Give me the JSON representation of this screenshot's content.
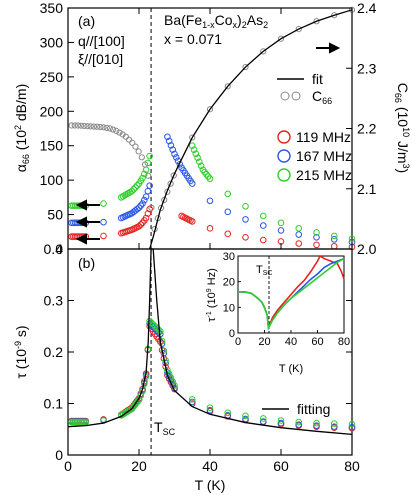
{
  "chart_data": [
    {
      "type": "scatter",
      "panel_label": "(a)",
      "compound": "Ba(Fe",
      "compound_sub1": "1-x",
      "compound_mid": "Co",
      "compound_sub2": "x",
      "compound_end": ")",
      "compound_sub3": "2",
      "compound_tail": "As",
      "compound_sub4": "2",
      "doping": "x = 0.071",
      "q_label": "q//[100]",
      "xi_label": "ξ//[010]",
      "ylabel_left": "α",
      "ylabel_left_sub": "66",
      "ylabel_left_unit": " (10",
      "ylabel_left_exp": "2",
      "ylabel_left_unit2": " dB/m)",
      "ylabel_right": "C",
      "ylabel_right_sub": "66",
      "ylabel_right_unit": " (10",
      "ylabel_right_exp": "10",
      "ylabel_right_unit2": " J/m",
      "ylabel_right_exp2": "3",
      "ylabel_right_close": ")",
      "xlim": [
        0,
        80
      ],
      "ylim_left": [
        0,
        350
      ],
      "ylim_right": [
        2.0,
        2.4
      ],
      "yticks_left": [
        "0",
        "50",
        "100",
        "150",
        "200",
        "250",
        "300",
        "350"
      ],
      "yticks_right": [
        "2.0",
        "2.1",
        "2.2",
        "2.3",
        "2.4"
      ],
      "legend": {
        "fit": "fit",
        "c66": "C",
        "c66_sub": "66",
        "items": [
          "119 MHz",
          "167 MHz",
          "215 MHz"
        ]
      },
      "colors": {
        "119 MHz": "#e8231f",
        "167 MHz": "#2858e6",
        "215 MHz": "#2fcf2a",
        "C66": "#888888",
        "fit": "#000000"
      },
      "series": [
        {
          "name": "119 MHz",
          "axis": "left",
          "x": [
            1,
            5,
            10,
            15,
            18,
            20,
            21,
            22,
            23,
            23.4,
            32,
            35,
            40,
            45,
            50,
            55,
            60,
            65,
            70,
            75,
            80
          ],
          "y": [
            18,
            18,
            19,
            23,
            28,
            33,
            38,
            45,
            58,
            80,
            48,
            40,
            30,
            22,
            17,
            13,
            11,
            8,
            6,
            4,
            3
          ]
        },
        {
          "name": "167 MHz",
          "axis": "left",
          "x": [
            1,
            5,
            10,
            15,
            18,
            20,
            21,
            22,
            23,
            23.4,
            28,
            30,
            32,
            35,
            40,
            45,
            50,
            55,
            60,
            65,
            70,
            75,
            80
          ],
          "y": [
            38,
            38,
            39,
            45,
            52,
            60,
            66,
            76,
            92,
            125,
            163,
            138,
            118,
            95,
            70,
            54,
            43,
            34,
            27,
            21,
            17,
            14,
            10
          ]
        },
        {
          "name": "215 MHz",
          "axis": "left",
          "x": [
            1,
            5,
            10,
            15,
            18,
            20,
            21,
            22,
            23,
            23.4,
            35,
            38,
            40,
            45,
            50,
            55,
            60,
            65,
            70,
            75,
            80
          ],
          "y": [
            63,
            63,
            66,
            75,
            84,
            95,
            103,
            115,
            135,
            190,
            150,
            115,
            102,
            80,
            62,
            48,
            38,
            30,
            24,
            19,
            15
          ]
        },
        {
          "name": "C66",
          "axis": "right",
          "x": [
            1,
            3,
            5,
            8,
            10,
            12,
            14,
            16,
            18,
            19,
            20,
            21,
            22,
            23,
            24,
            26,
            30,
            35,
            40,
            45,
            50,
            55,
            60,
            65,
            70,
            75,
            80
          ],
          "y": [
            2.205,
            2.205,
            2.204,
            2.203,
            2.202,
            2.2,
            2.195,
            2.188,
            2.177,
            2.17,
            2.161,
            2.15,
            2.136,
            2.112,
            2.025,
            2.065,
            2.125,
            2.185,
            2.232,
            2.27,
            2.302,
            2.328,
            2.349,
            2.365,
            2.378,
            2.388,
            2.397
          ]
        }
      ],
      "fit": {
        "axis": "right",
        "x": [
          23,
          24,
          26,
          28,
          30,
          35,
          40,
          45,
          50,
          55,
          60,
          65,
          70,
          75,
          80
        ],
        "y": [
          2.0,
          2.02,
          2.065,
          2.097,
          2.125,
          2.185,
          2.232,
          2.27,
          2.302,
          2.328,
          2.349,
          2.365,
          2.378,
          2.388,
          2.397
        ]
      }
    },
    {
      "type": "scatter",
      "panel_label": "(b)",
      "xlabel": "T (K)",
      "ylabel": "τ (10",
      "ylabel_exp": "-9",
      "ylabel_close": " s)",
      "xlim": [
        0,
        80
      ],
      "ylim": [
        0,
        0.4
      ],
      "xticks": [
        "0",
        "20",
        "40",
        "60",
        "80"
      ],
      "yticks": [
        "0",
        "0.1",
        "0.2",
        "0.3",
        "0.4"
      ],
      "tsc_label": "T",
      "tsc_sub": "SC",
      "fitting_label": "fitting",
      "series": [
        {
          "name": "119 MHz",
          "x": [
            1,
            5,
            10,
            15,
            18,
            20,
            21,
            22,
            23,
            26,
            28,
            30,
            35,
            40,
            45,
            50,
            55,
            60,
            65,
            70,
            75,
            80
          ],
          "y": [
            0.066,
            0.066,
            0.069,
            0.078,
            0.092,
            0.11,
            0.128,
            0.158,
            0.25,
            0.22,
            0.155,
            0.128,
            0.1,
            0.085,
            0.075,
            0.068,
            0.064,
            0.06,
            0.057,
            0.055,
            0.053,
            0.052
          ]
        },
        {
          "name": "167 MHz",
          "x": [
            1,
            5,
            10,
            15,
            18,
            20,
            21,
            22,
            23,
            26,
            28,
            30,
            35,
            40,
            45,
            50,
            55,
            60,
            65,
            70,
            75,
            80
          ],
          "y": [
            0.065,
            0.065,
            0.068,
            0.077,
            0.09,
            0.108,
            0.125,
            0.155,
            0.255,
            0.235,
            0.16,
            0.13,
            0.103,
            0.087,
            0.077,
            0.07,
            0.065,
            0.062,
            0.059,
            0.057,
            0.055,
            0.054
          ]
        },
        {
          "name": "215 MHz",
          "x": [
            1,
            5,
            10,
            15,
            18,
            20,
            21,
            22,
            23,
            26,
            28,
            30,
            35,
            40,
            45,
            50,
            55,
            60,
            65,
            70,
            75,
            80
          ],
          "y": [
            0.064,
            0.064,
            0.067,
            0.077,
            0.09,
            0.107,
            0.124,
            0.152,
            0.26,
            0.24,
            0.165,
            0.135,
            0.108,
            0.092,
            0.082,
            0.076,
            0.071,
            0.067,
            0.064,
            0.062,
            0.061,
            0.06
          ]
        }
      ],
      "fit": {
        "x": [
          0,
          5,
          10,
          15,
          18,
          20,
          21,
          22,
          22.6,
          23,
          23.4,
          24,
          25,
          26,
          28,
          30,
          35,
          40,
          50,
          60,
          70,
          80
        ],
        "y": [
          0.055,
          0.057,
          0.062,
          0.075,
          0.09,
          0.11,
          0.128,
          0.16,
          0.22,
          0.3,
          0.4,
          0.4,
          0.3,
          0.22,
          0.155,
          0.125,
          0.094,
          0.079,
          0.063,
          0.053,
          0.046,
          0.04
        ]
      },
      "inset": {
        "title": "T",
        "title_sub": "SC",
        "xlabel": "T (K)",
        "ylabel": "τ",
        "ylabel_exp": "-1",
        "ylabel_unit": " (10",
        "ylabel_exp2": "9",
        "ylabel_unit2": " Hz)",
        "xlim": [
          0,
          80
        ],
        "ylim": [
          0,
          30
        ],
        "xticks": [
          "0",
          "20",
          "40",
          "60",
          "80"
        ],
        "yticks": [
          "0",
          "10",
          "20",
          "30"
        ],
        "series": [
          {
            "name": "119 MHz",
            "x": [
              0,
              5,
              10,
              15,
              18,
              20,
              22,
              23,
              26,
              30,
              35,
              40,
              45,
              50,
              55,
              60,
              62,
              65,
              70,
              75,
              78,
              80
            ],
            "y": [
              16,
              16,
              15.5,
              13.5,
              12,
              10,
              7,
              2,
              6,
              9,
              12,
              15,
              18,
              20.5,
              24,
              28,
              30,
              29,
              28,
              27,
              24,
              21
            ]
          },
          {
            "name": "167 MHz",
            "x": [
              0,
              5,
              10,
              15,
              18,
              20,
              22,
              23,
              26,
              30,
              35,
              40,
              45,
              50,
              55,
              60,
              65,
              70,
              75,
              80
            ],
            "y": [
              16,
              16,
              15.5,
              13.5,
              12,
              10,
              7,
              2,
              5,
              8,
              11,
              13.5,
              16,
              18.5,
              21,
              23,
              25.5,
              27,
              28,
              29
            ]
          },
          {
            "name": "215 MHz",
            "x": [
              0,
              5,
              10,
              15,
              18,
              20,
              22,
              23,
              26,
              30,
              35,
              40,
              45,
              50,
              55,
              60,
              65,
              70,
              75,
              80
            ],
            "y": [
              16,
              16,
              15.5,
              13.5,
              12,
              10,
              7,
              2,
              5,
              8,
              11,
              13.5,
              15.5,
              17.5,
              19.5,
              21.5,
              23.5,
              25.5,
              27.5,
              29
            ]
          }
        ]
      }
    }
  ]
}
